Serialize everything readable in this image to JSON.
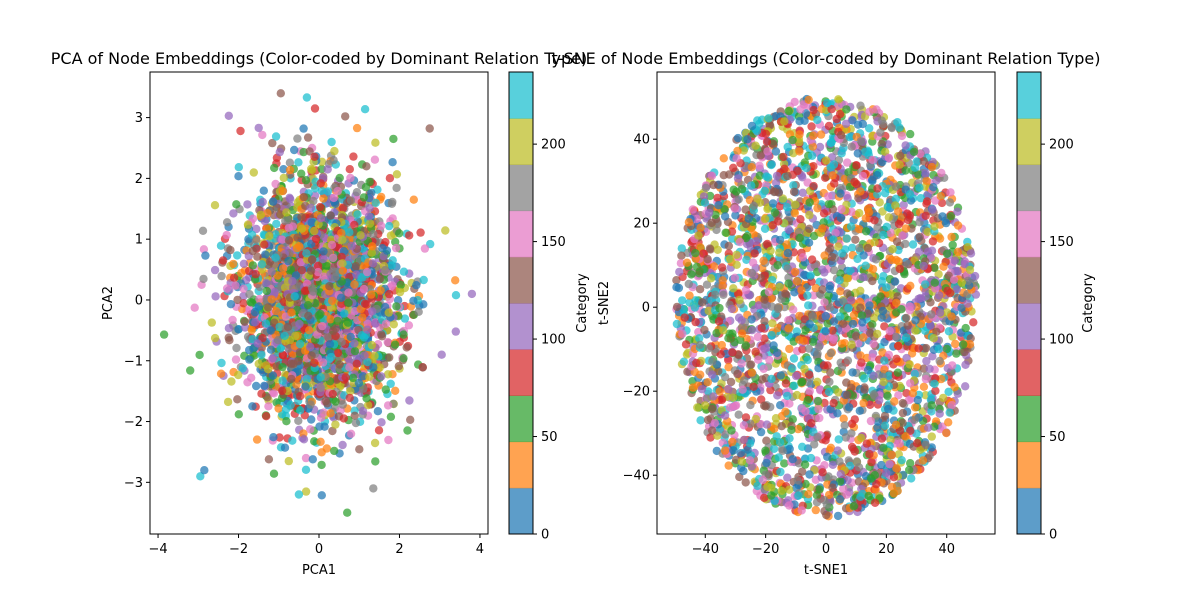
{
  "chart_data": [
    {
      "type": "scatter",
      "title": "PCA of Node Embeddings (Color-coded by Dominant Relation Type)",
      "xlabel": "PCA1",
      "ylabel": "PCA2",
      "xlim": [
        -4.2,
        4.2
      ],
      "ylim": [
        -3.85,
        3.75
      ],
      "xticks": [
        -4,
        -2,
        0,
        2,
        4
      ],
      "yticks": [
        -3,
        -2,
        -1,
        0,
        1,
        2,
        3
      ],
      "distribution": {
        "shape": "gaussian",
        "mean": [
          0,
          0
        ],
        "std": [
          0.95,
          0.95
        ],
        "approx_points": 3000
      },
      "outliers": [
        [
          -0.95,
          3.4
        ],
        [
          -0.3,
          3.33
        ],
        [
          -0.1,
          3.15
        ],
        [
          0.65,
          3.02
        ],
        [
          2.75,
          2.82
        ],
        [
          -1.95,
          2.78
        ],
        [
          1.85,
          2.65
        ],
        [
          -3.85,
          -0.57
        ],
        [
          -3.2,
          -1.16
        ],
        [
          -2.95,
          -2.9
        ],
        [
          -2.85,
          -2.8
        ],
        [
          -0.5,
          -3.2
        ],
        [
          0.7,
          -3.5
        ],
        [
          1.35,
          -3.1
        ],
        [
          3.8,
          0.1
        ],
        [
          3.4,
          -0.52
        ],
        [
          3.05,
          -0.9
        ]
      ],
      "colorbar": {
        "label": "Category",
        "range": [
          0,
          237
        ],
        "ticks": [
          0,
          50,
          100,
          150,
          200
        ]
      }
    },
    {
      "type": "scatter",
      "title": "t-SNE of Node Embeddings (Color-coded by Dominant Relation Type)",
      "xlabel": "t-SNE1",
      "ylabel": "t-SNE2",
      "xlim": [
        -56,
        56
      ],
      "ylim": [
        -54,
        56
      ],
      "xticks": [
        -40,
        -20,
        0,
        20,
        40
      ],
      "yticks": [
        -40,
        -20,
        0,
        20,
        40
      ],
      "distribution": {
        "shape": "uniform-ellipse",
        "center": [
          0,
          0
        ],
        "radii": [
          50,
          50
        ],
        "approx_points": 3000
      },
      "colorbar": {
        "label": "Category",
        "range": [
          0,
          237
        ],
        "ticks": [
          0,
          50,
          100,
          150,
          200
        ]
      }
    }
  ],
  "colors": {
    "categories": [
      "#1f77b4",
      "#ff7f0e",
      "#2ca02c",
      "#d62728",
      "#9467bd",
      "#8c564b",
      "#e377c2",
      "#7f7f7f",
      "#bcbd22",
      "#17becf"
    ]
  }
}
